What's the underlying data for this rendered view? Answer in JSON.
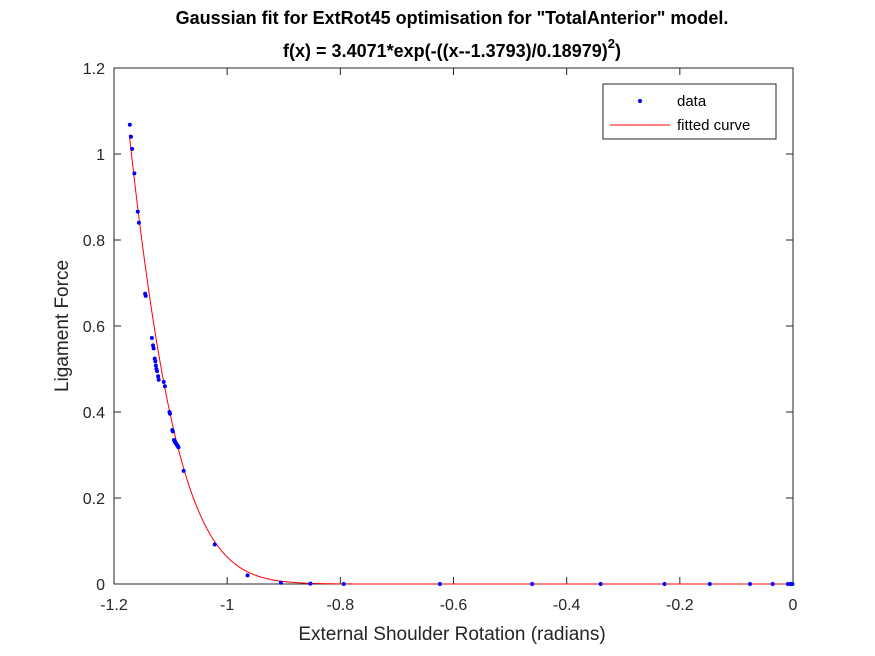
{
  "chart_data": {
    "type": "scatter",
    "title_line1": "Gaussian fit for ExtRot45 optimisation for \"TotalAnterior\" model.",
    "title_line2_base": "f(x) = 3.4071*exp(-((x--1.3793)/0.18979)",
    "title_line2_sup": "2",
    "title_line2_end": ")",
    "xlabel": "External Shoulder Rotation (radians)",
    "ylabel": "Ligament Force",
    "xlim": [
      -1.2,
      0
    ],
    "ylim": [
      0,
      1.2
    ],
    "xticks": [
      "-1.2",
      "-1",
      "-0.8",
      "-0.6",
      "-0.4",
      "-0.2",
      "0"
    ],
    "xtick_values": [
      -1.2,
      -1.0,
      -0.8,
      -0.6,
      -0.4,
      -0.2,
      0
    ],
    "yticks": [
      "0",
      "0.2",
      "0.4",
      "0.6",
      "0.8",
      "1",
      "1.2"
    ],
    "ytick_values": [
      0,
      0.2,
      0.4,
      0.6,
      0.8,
      1.0,
      1.2
    ],
    "grid": false,
    "legend_position": "top-right",
    "series": [
      {
        "name": "data",
        "kind": "points",
        "color": "#0000ff",
        "x": [
          -1.172,
          -1.17,
          -1.168,
          -1.164,
          -1.158,
          -1.156,
          -1.145,
          -1.144,
          -1.133,
          -1.131,
          -1.13,
          -1.128,
          -1.127,
          -1.126,
          -1.125,
          -1.124,
          -1.122,
          -1.121,
          -1.112,
          -1.11,
          -1.102,
          -1.101,
          -1.097,
          -1.096,
          -1.094,
          -1.093,
          -1.092,
          -1.091,
          -1.09,
          -1.089,
          -1.088,
          -1.087,
          -1.086,
          -1.077,
          -1.022,
          -0.964,
          -0.905,
          -0.853,
          -0.794,
          -0.624,
          -0.461,
          -0.34,
          -0.227,
          -0.147,
          -0.076,
          -0.036,
          -0.009,
          -0.004,
          -0.001
        ],
        "y": [
          1.068,
          1.04,
          1.012,
          0.955,
          0.866,
          0.84,
          0.675,
          0.67,
          0.572,
          0.555,
          0.548,
          0.524,
          0.518,
          0.508,
          0.5,
          0.495,
          0.483,
          0.475,
          0.47,
          0.46,
          0.4,
          0.396,
          0.358,
          0.355,
          0.335,
          0.332,
          0.33,
          0.328,
          0.326,
          0.324,
          0.322,
          0.32,
          0.318,
          0.263,
          0.092,
          0.02,
          0.003,
          0.001,
          0.0,
          0.0,
          0.0,
          0.0,
          0.0,
          0.0,
          0.0,
          0.0,
          0.0,
          0.0,
          0.0
        ]
      },
      {
        "name": "fitted curve",
        "kind": "line",
        "color": "#ff0000",
        "function": {
          "a": 3.4071,
          "b": -1.3793,
          "c": 0.18979,
          "x_start": -1.173,
          "x_end": 0
        }
      }
    ]
  }
}
